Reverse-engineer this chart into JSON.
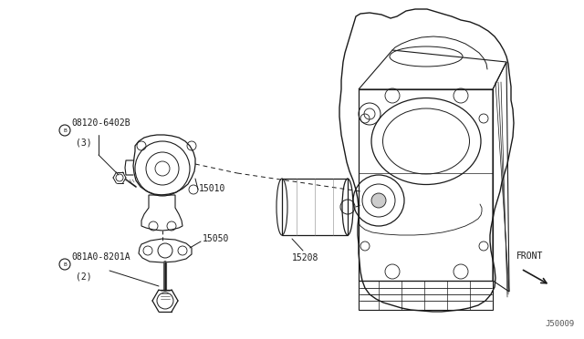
{
  "bg_color": "#ffffff",
  "line_color": "#1a1a1a",
  "fig_width": 6.4,
  "fig_height": 3.72,
  "dpi": 100,
  "watermark": "J50009",
  "label_08120": "B 08120-6402B\n  (3)",
  "label_15010": "15010",
  "label_15050": "15050",
  "label_081A0": "B 081A0-8201A\n   (2)",
  "label_15208": "15208",
  "label_front": "FRONT"
}
